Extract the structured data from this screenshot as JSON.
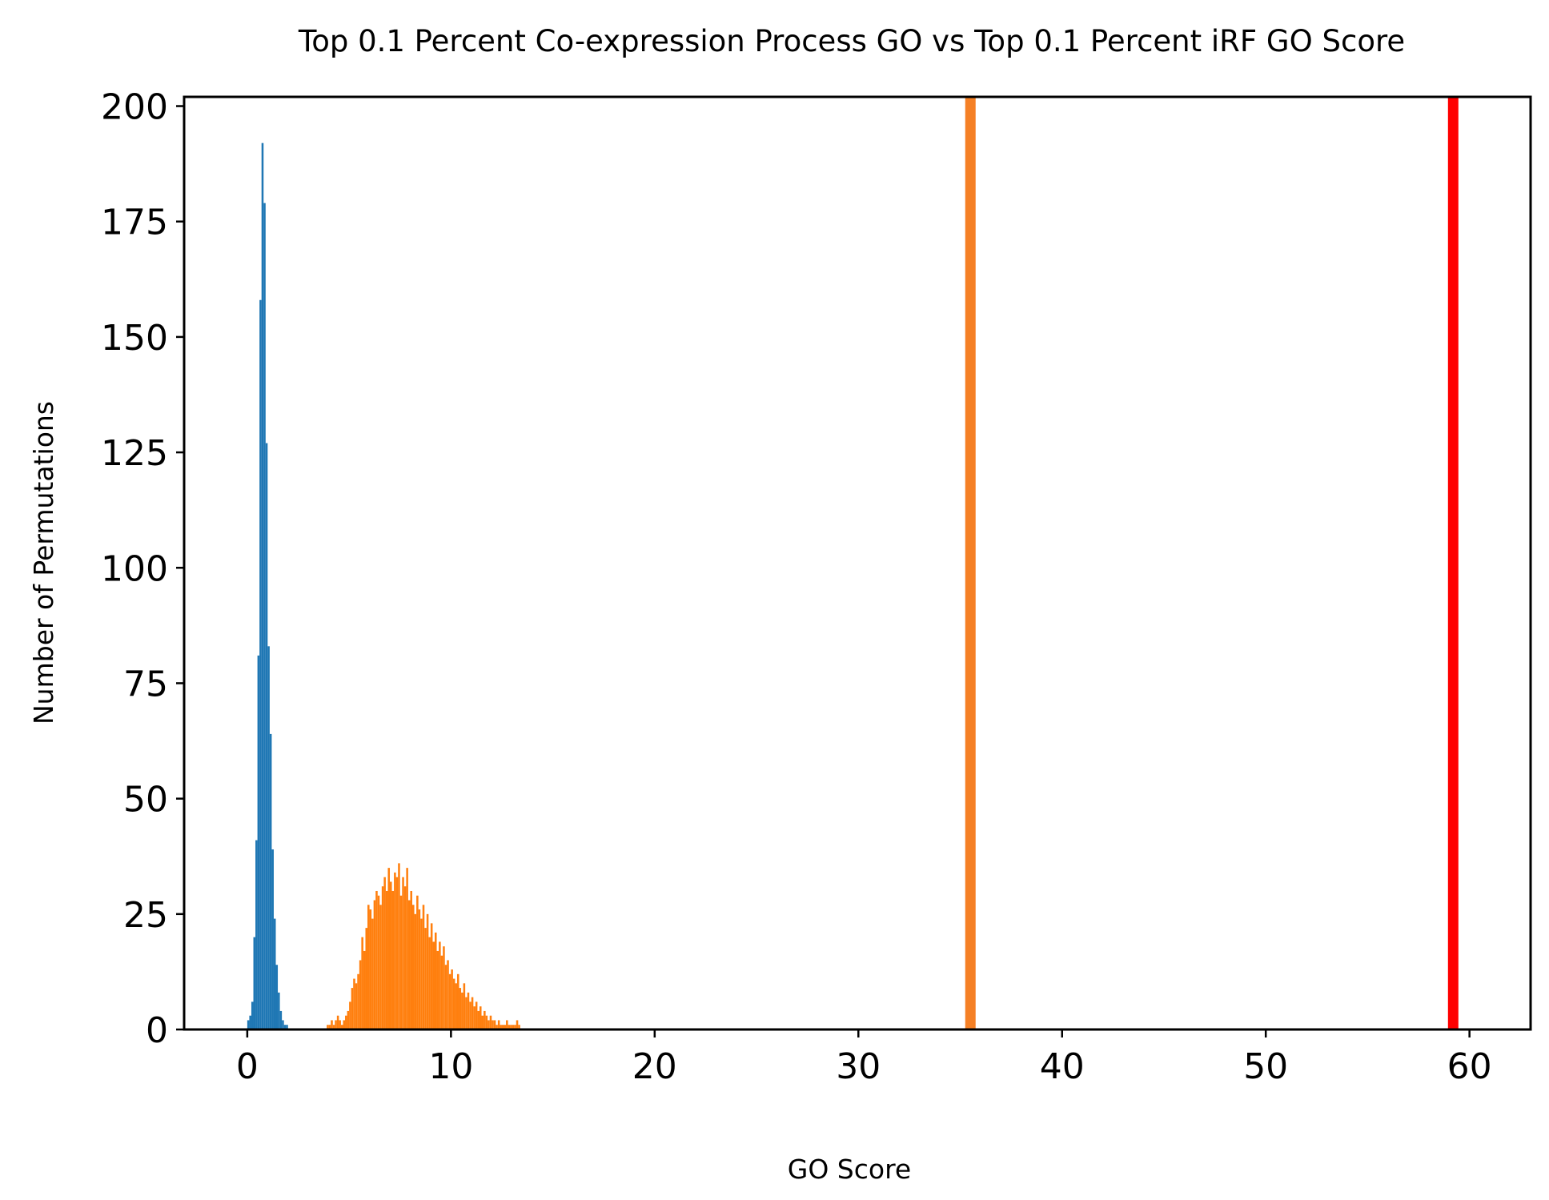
{
  "chart_data": {
    "type": "bar",
    "title": "Top 0.1 Percent Co-expression Process GO vs Top 0.1 Percent iRF GO Score",
    "xlabel": "GO Score",
    "ylabel": "Number of Permutations",
    "xlim": [
      -3.1,
      63.0
    ],
    "ylim": [
      0,
      202
    ],
    "xticks": [
      0,
      10,
      20,
      30,
      40,
      50,
      60
    ],
    "yticks": [
      0,
      25,
      50,
      75,
      100,
      125,
      150,
      175,
      200
    ],
    "grid": false,
    "legend": "none",
    "bin_width": 0.1,
    "series": [
      {
        "color": "#1f77b4",
        "bins": [
          0.0,
          0.1,
          0.2,
          0.3,
          0.4,
          0.5,
          0.6,
          0.7,
          0.8,
          0.9,
          1.0,
          1.1,
          1.2,
          1.3,
          1.4,
          1.5,
          1.6,
          1.7,
          1.8,
          1.9
        ],
        "counts": [
          2,
          3,
          6,
          20,
          41,
          81,
          158,
          192,
          179,
          127,
          83,
          64,
          39,
          24,
          14,
          8,
          4,
          2,
          1,
          1
        ]
      },
      {
        "color": "#ff7f0e",
        "bins": [
          3.9,
          4.0,
          4.1,
          4.2,
          4.3,
          4.4,
          4.5,
          4.6,
          4.7,
          4.8,
          4.9,
          5.0,
          5.1,
          5.2,
          5.3,
          5.4,
          5.5,
          5.6,
          5.7,
          5.8,
          5.9,
          6.0,
          6.1,
          6.2,
          6.3,
          6.4,
          6.5,
          6.6,
          6.7,
          6.8,
          6.9,
          7.0,
          7.1,
          7.2,
          7.3,
          7.4,
          7.5,
          7.6,
          7.7,
          7.8,
          7.9,
          8.0,
          8.1,
          8.2,
          8.3,
          8.4,
          8.5,
          8.6,
          8.7,
          8.8,
          8.9,
          9.0,
          9.1,
          9.2,
          9.3,
          9.4,
          9.5,
          9.6,
          9.7,
          9.8,
          9.9,
          10.0,
          10.1,
          10.2,
          10.3,
          10.4,
          10.5,
          10.6,
          10.7,
          10.8,
          10.9,
          11.0,
          11.1,
          11.2,
          11.3,
          11.4,
          11.5,
          11.6,
          11.7,
          11.8,
          11.9,
          12.0,
          12.1,
          12.2,
          12.3,
          12.4,
          12.5,
          12.6,
          12.7,
          12.8,
          12.9,
          13.0,
          13.1,
          13.2,
          13.3
        ],
        "counts": [
          1,
          1,
          2,
          1,
          2,
          3,
          2,
          1,
          2,
          3,
          4,
          6,
          9,
          11,
          10,
          12,
          15,
          20,
          17,
          22,
          27,
          26,
          24,
          28,
          30,
          29,
          27,
          31,
          33,
          30,
          35,
          32,
          30,
          34,
          33,
          36,
          29,
          33,
          31,
          35,
          28,
          30,
          27,
          25,
          29,
          26,
          24,
          27,
          22,
          25,
          20,
          23,
          19,
          21,
          17,
          19,
          16,
          18,
          14,
          15,
          12,
          13,
          11,
          10,
          12,
          9,
          8,
          10,
          7,
          8,
          6,
          7,
          5,
          6,
          4,
          5,
          3,
          4,
          3,
          2,
          3,
          2,
          2,
          1,
          2,
          1,
          1,
          1,
          2,
          1,
          1,
          1,
          1,
          2,
          1
        ]
      }
    ],
    "vlines": [
      {
        "x": 35.5,
        "color": "#f58025"
      },
      {
        "x": 59.2,
        "color": "#ff0000"
      }
    ]
  }
}
